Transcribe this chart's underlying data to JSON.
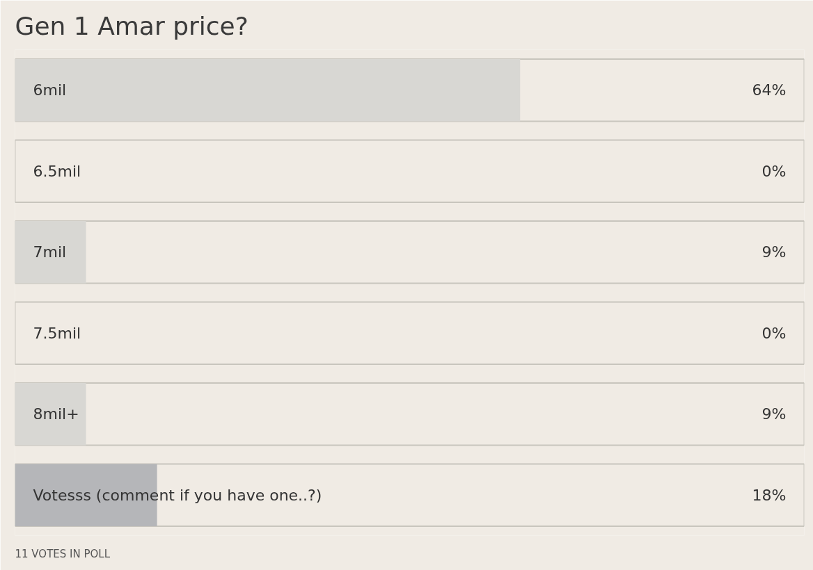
{
  "chart_data": {
    "type": "bar",
    "orientation": "horizontal",
    "title": "Gen 1 Amar price?",
    "categories": [
      "6mil",
      "6.5mil",
      "7mil",
      "7.5mil",
      "8mil+",
      "Votesss (comment if you have one..?)"
    ],
    "values": [
      64,
      0,
      9,
      0,
      9,
      18
    ],
    "colors": [
      "#d8d7d3",
      "#d8d7d3",
      "#d8d7d3",
      "#d8d7d3",
      "#d8d7d3",
      "#b5b6b9"
    ],
    "value_labels": [
      "64%",
      "0%",
      "9%",
      "0%",
      "9%",
      "18%"
    ],
    "xlim": [
      0,
      100
    ],
    "tick_labels": false,
    "grid": false,
    "annotations": [
      "11 VOTES IN POLL"
    ]
  }
}
